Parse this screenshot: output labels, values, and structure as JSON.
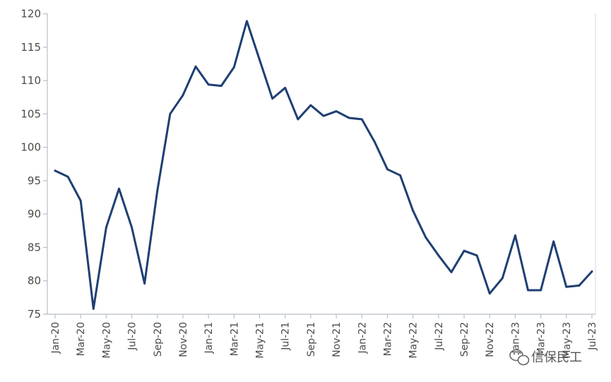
{
  "chart_data": {
    "type": "line",
    "title": "",
    "xlabel": "",
    "ylabel": "",
    "ylim": [
      75,
      120
    ],
    "yticks": [
      75,
      80,
      85,
      90,
      95,
      100,
      105,
      110,
      115,
      120
    ],
    "x": [
      "Jan-20",
      "Feb-20",
      "Mar-20",
      "Apr-20",
      "May-20",
      "Jun-20",
      "Jul-20",
      "Aug-20",
      "Sep-20",
      "Oct-20",
      "Nov-20",
      "Dec-20",
      "Jan-21",
      "Feb-21",
      "Mar-21",
      "Apr-21",
      "May-21",
      "Jun-21",
      "Jul-21",
      "Aug-21",
      "Sep-21",
      "Oct-21",
      "Nov-21",
      "Dec-21",
      "Jan-22",
      "Feb-22",
      "Mar-22",
      "Apr-22",
      "May-22",
      "Jun-22",
      "Jul-22",
      "Aug-22",
      "Sep-22",
      "Oct-22",
      "Nov-22",
      "Dec-22",
      "Jan-23",
      "Feb-23",
      "Mar-23",
      "Apr-23",
      "May-23",
      "Jun-23",
      "Jul-23"
    ],
    "x_tick_labels": [
      "Jan-20",
      "Mar-20",
      "May-20",
      "Jul-20",
      "Sep-20",
      "Nov-20",
      "Jan-21",
      "Mar-21",
      "May-21",
      "Jul-21",
      "Sep-21",
      "Nov-21",
      "Jan-22",
      "Mar-22",
      "May-22",
      "Jul-22",
      "Sep-22",
      "Nov-22",
      "Jan-23",
      "Mar-23",
      "May-23",
      "Jul-23"
    ],
    "series": [
      {
        "values": [
          96.5,
          95.6,
          92.0,
          75.8,
          88.0,
          93.8,
          88.0,
          79.6,
          93.5,
          105.0,
          107.8,
          112.1,
          109.4,
          109.2,
          112.0,
          118.9,
          113.1,
          107.3,
          108.9,
          104.2,
          106.3,
          104.7,
          105.4,
          104.4,
          104.2,
          100.8,
          96.7,
          95.8,
          90.5,
          86.5,
          83.8,
          81.3,
          84.5,
          83.8,
          78.1,
          80.4,
          86.8,
          78.6,
          78.6,
          85.9,
          79.1,
          79.3,
          81.4
        ]
      }
    ],
    "colors": {
      "line": "#1f3f73",
      "axis": "#b8bfc8"
    },
    "grid": false,
    "legend": "none"
  },
  "watermark": {
    "icon": "wechat-icon",
    "text": "信保民工"
  }
}
